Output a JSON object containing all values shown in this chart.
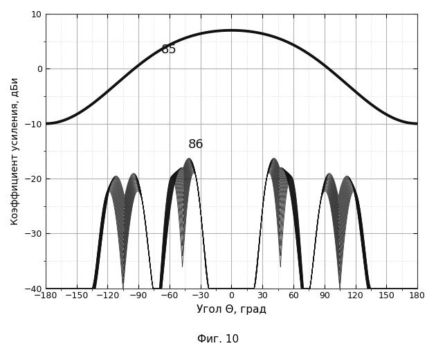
{
  "title": "",
  "xlabel": "Угол Θ, град",
  "ylabel": "Коэффициент усиления, дБи",
  "fig_label": "Фиг. 10",
  "xlim": [
    -180,
    180
  ],
  "ylim": [
    -40,
    10
  ],
  "xticks": [
    -180,
    -150,
    -120,
    -90,
    -60,
    -30,
    0,
    30,
    60,
    90,
    120,
    150,
    180
  ],
  "yticks": [
    -40,
    -30,
    -20,
    -10,
    0,
    10
  ],
  "label_85": "85",
  "label_86": "86",
  "background_color": "#ffffff",
  "grid_color": "#b0b0b0",
  "line_color": "#111111",
  "figsize": [
    6.3,
    5.0
  ],
  "dpi": 100,
  "n_curves": 22
}
